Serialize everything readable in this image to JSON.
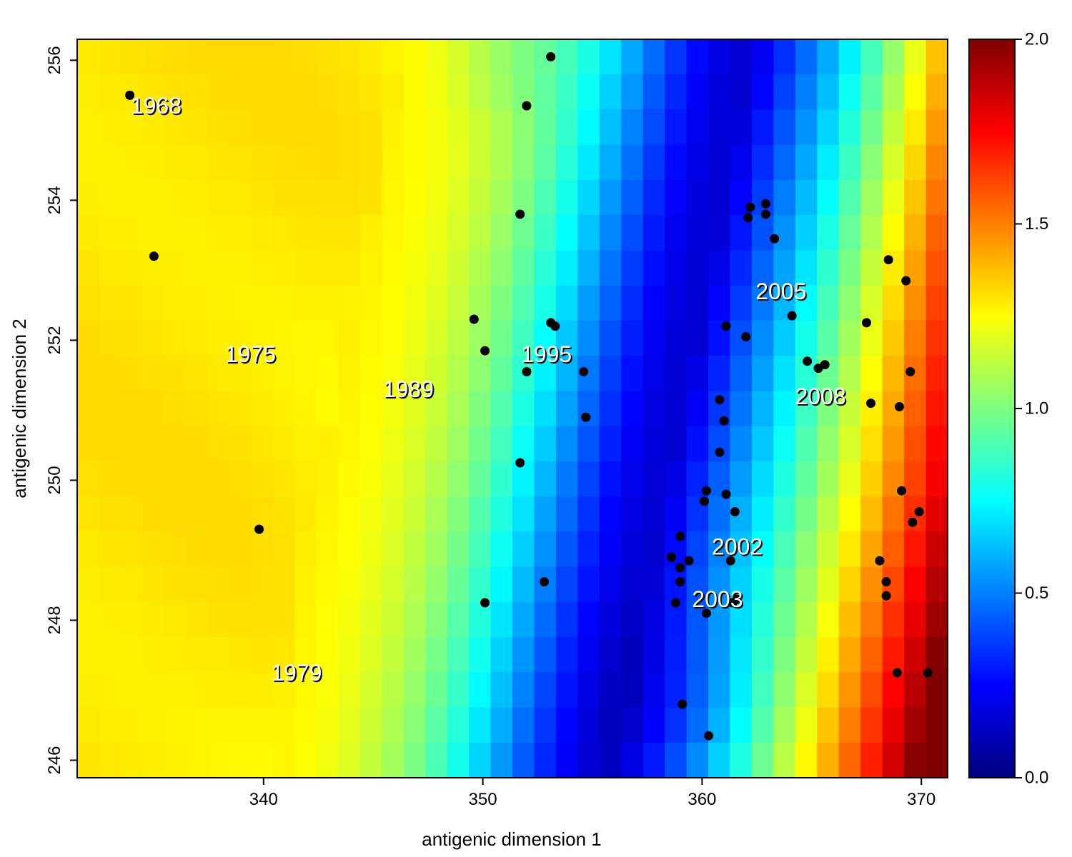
{
  "chart_data": {
    "type": "heatmap",
    "xlabel": "antigenic dimension 1",
    "ylabel": "antigenic dimension 2",
    "xlim": [
      331.5,
      371.2
    ],
    "ylim": [
      245.75,
      256.3
    ],
    "xticks": [
      340,
      350,
      360,
      370
    ],
    "yticks": [
      246,
      248,
      250,
      252,
      254,
      256
    ],
    "colorbar": {
      "min": 0.0,
      "max": 2.0,
      "ticks": [
        "0.0",
        "0.5",
        "1.0",
        "1.5",
        "2.0"
      ]
    },
    "surface_model": {
      "description": "colour value over the map",
      "trough_x_at_y250": 358.5,
      "trough_slope": 0.62,
      "trough_min": 0.16,
      "left_plateau": 1.3,
      "right_max": 1.78
    },
    "points": [
      [
        333.9,
        255.5
      ],
      [
        335.0,
        253.2
      ],
      [
        339.8,
        249.3
      ],
      [
        353.1,
        256.05
      ],
      [
        352.0,
        255.35
      ],
      [
        351.7,
        253.8
      ],
      [
        349.6,
        252.3
      ],
      [
        350.1,
        251.85
      ],
      [
        353.1,
        252.25
      ],
      [
        353.3,
        252.2
      ],
      [
        352.0,
        251.55
      ],
      [
        354.6,
        251.55
      ],
      [
        354.7,
        250.9
      ],
      [
        351.7,
        250.25
      ],
      [
        352.8,
        248.55
      ],
      [
        350.1,
        248.25
      ],
      [
        362.2,
        253.9
      ],
      [
        362.9,
        253.95
      ],
      [
        362.1,
        253.75
      ],
      [
        362.9,
        253.8
      ],
      [
        363.3,
        253.45
      ],
      [
        364.1,
        252.35
      ],
      [
        361.1,
        252.2
      ],
      [
        362.0,
        252.05
      ],
      [
        364.8,
        251.7
      ],
      [
        365.3,
        251.6
      ],
      [
        365.6,
        251.65
      ],
      [
        360.8,
        251.15
      ],
      [
        361.0,
        250.85
      ],
      [
        360.8,
        250.4
      ],
      [
        360.2,
        249.85
      ],
      [
        361.1,
        249.8
      ],
      [
        360.1,
        249.7
      ],
      [
        361.5,
        249.55
      ],
      [
        359.0,
        249.2
      ],
      [
        358.6,
        248.9
      ],
      [
        359.4,
        248.85
      ],
      [
        361.3,
        248.85
      ],
      [
        359.0,
        248.75
      ],
      [
        359.0,
        248.55
      ],
      [
        358.8,
        248.25
      ],
      [
        361.4,
        248.25
      ],
      [
        361.6,
        248.3
      ],
      [
        360.2,
        248.1
      ],
      [
        359.1,
        246.8
      ],
      [
        360.3,
        246.35
      ],
      [
        368.5,
        253.15
      ],
      [
        369.3,
        252.85
      ],
      [
        367.5,
        252.25
      ],
      [
        369.5,
        251.55
      ],
      [
        367.7,
        251.1
      ],
      [
        369.0,
        251.05
      ],
      [
        369.1,
        249.85
      ],
      [
        369.9,
        249.55
      ],
      [
        369.6,
        249.4
      ],
      [
        368.1,
        248.85
      ],
      [
        368.4,
        248.55
      ],
      [
        368.4,
        248.35
      ],
      [
        368.9,
        247.25
      ],
      [
        370.3,
        247.25
      ]
    ],
    "year_labels": [
      {
        "text": "1968",
        "x": 335.1,
        "y": 255.35
      },
      {
        "text": "1975",
        "x": 339.4,
        "y": 251.8
      },
      {
        "text": "1979",
        "x": 341.5,
        "y": 247.25
      },
      {
        "text": "1989",
        "x": 346.6,
        "y": 251.3
      },
      {
        "text": "1995",
        "x": 352.9,
        "y": 251.8
      },
      {
        "text": "2002",
        "x": 361.6,
        "y": 249.05
      },
      {
        "text": "2003",
        "x": 360.7,
        "y": 248.3
      },
      {
        "text": "2005",
        "x": 363.6,
        "y": 252.7
      },
      {
        "text": "2008",
        "x": 365.4,
        "y": 251.2
      }
    ]
  }
}
